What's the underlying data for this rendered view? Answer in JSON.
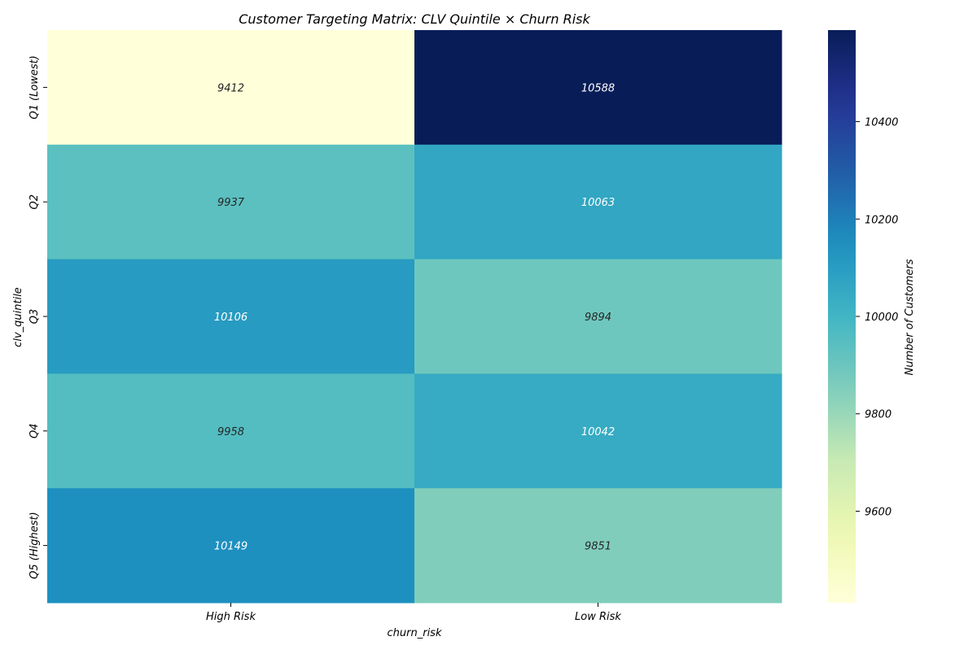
{
  "chart_data": {
    "type": "heatmap",
    "title": "Customer Targeting Matrix: CLV Quintile × Churn Risk",
    "xlabel": "churn_risk",
    "ylabel": "clv_quintile",
    "x_categories": [
      "High Risk",
      "Low Risk"
    ],
    "y_categories": [
      "Q1 (Lowest)",
      "Q2",
      "Q3",
      "Q4",
      "Q5 (Highest)"
    ],
    "values": [
      [
        9412,
        10588
      ],
      [
        9937,
        10063
      ],
      [
        10106,
        9894
      ],
      [
        9958,
        10042
      ],
      [
        10149,
        9851
      ]
    ],
    "colorbar": {
      "label": "Number of Customers",
      "colormap": "YlGnBu",
      "vmin": 9412,
      "vmax": 10588,
      "ticks": [
        9600,
        9800,
        10000,
        10200,
        10400
      ]
    }
  }
}
